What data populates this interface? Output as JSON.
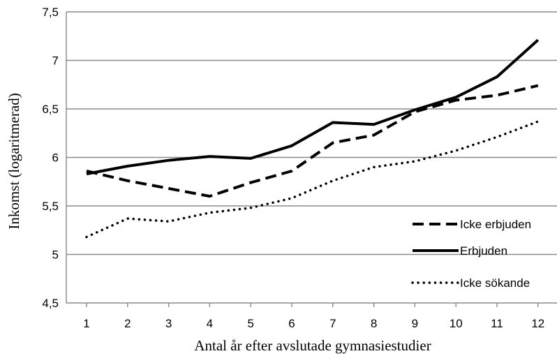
{
  "chart_data": {
    "type": "line",
    "title": "",
    "xlabel": "Antal år efter avslutade gymnasiestudier",
    "ylabel": "Inkomst (logaritmerad)",
    "x": [
      1,
      2,
      3,
      4,
      5,
      6,
      7,
      8,
      9,
      10,
      11,
      12
    ],
    "x_tick_labels": [
      "1",
      "2",
      "3",
      "4",
      "5",
      "6",
      "7",
      "8",
      "9",
      "10",
      "11",
      "12"
    ],
    "ylim": [
      4.5,
      7.5
    ],
    "y_ticks": [
      4.5,
      5,
      5.5,
      6,
      6.5,
      7,
      7.5
    ],
    "y_tick_labels": [
      "4,5",
      "5",
      "5,5",
      "6",
      "6,5",
      "7",
      "7,5"
    ],
    "grid": true,
    "legend_position": "right",
    "series": [
      {
        "name": "Icke erbjuden",
        "style": "dashed",
        "values": [
          5.86,
          5.76,
          5.68,
          5.6,
          5.74,
          5.86,
          6.15,
          6.23,
          6.47,
          6.59,
          6.64,
          6.74
        ]
      },
      {
        "name": "Erbjuden",
        "style": "solid",
        "values": [
          5.83,
          5.91,
          5.97,
          6.01,
          5.99,
          6.12,
          6.36,
          6.34,
          6.49,
          6.62,
          6.83,
          7.21
        ]
      },
      {
        "name": "Icke sökande",
        "style": "dotted",
        "values": [
          5.18,
          5.37,
          5.34,
          5.43,
          5.48,
          5.58,
          5.76,
          5.9,
          5.96,
          6.07,
          6.21,
          6.37
        ]
      }
    ]
  }
}
